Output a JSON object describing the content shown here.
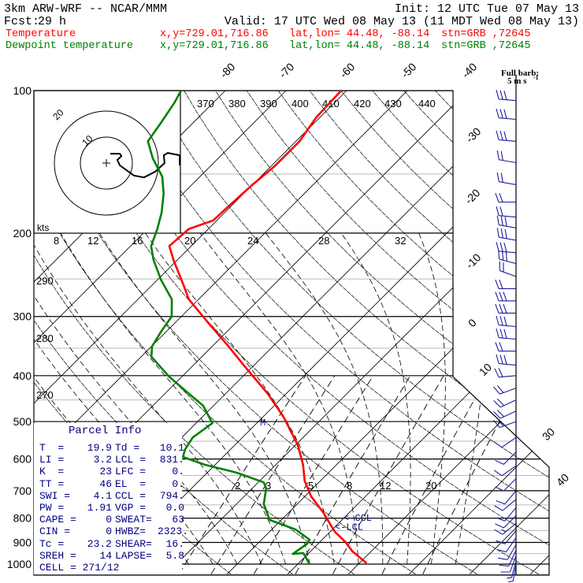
{
  "header": {
    "model": "3km ARW-WRF -- NCAR/MMM",
    "init": "Init: 12 UTC Tue 07 May 13",
    "fcst_label": "Fcst:",
    "fcst_value": "29 h",
    "valid": "Valid: 17 UTC Wed 08 May 13 (11 MDT Wed 08 May 13)"
  },
  "legend": [
    {
      "name": "Temperature",
      "xy": "x,y=729.01,716.86",
      "latlon": "lat,lon= 44.48, -88.14",
      "stn": "stn=GRB ,72645",
      "color": "#ff0000"
    },
    {
      "name": "Dewpoint temperature",
      "xy": "x,y=729.01,716.86",
      "latlon": "lat,lon= 44.48, -88.14",
      "stn": "stn=GRB ,72645",
      "color": "#008000"
    }
  ],
  "barb_legend": {
    "line1": "Full barb:",
    "line2": "5 m s",
    "sup": "-1"
  },
  "parcel_info": {
    "title": "Parcel Info",
    "rows": [
      [
        "T  =",
        "19.9",
        "Td =",
        "10.1"
      ],
      [
        "LI =",
        "3.2",
        "LCL =",
        "831."
      ],
      [
        "K  =",
        "23",
        "LFC =",
        "0."
      ],
      [
        "TT =",
        "46",
        "EL  =",
        "0."
      ],
      [
        "SWI =",
        "4.1",
        "CCL =",
        "794."
      ],
      [
        "PW =",
        "1.91",
        "VGP =",
        "0.0"
      ],
      [
        "CAPE =",
        "0",
        "SWEAT=",
        "63"
      ],
      [
        "CIN =",
        "0",
        "HWBZ=",
        "2323."
      ],
      [
        "Tc =",
        "23.2",
        "SHEAR=",
        "16."
      ],
      [
        "SREH =",
        "14",
        "LAPSE=",
        "5.8"
      ],
      [
        "CELL = 271/12",
        "",
        "",
        ""
      ]
    ]
  },
  "chart_data": {
    "type": "skew-t",
    "pressure_ticks": [
      "100",
      "200",
      "300",
      "400",
      "500",
      "600",
      "700",
      "800",
      "900",
      "1000"
    ],
    "isotherm_labels_top": [
      "-80",
      "-70",
      "-60",
      "-50",
      "-40"
    ],
    "isotherm_labels_right": [
      "-30",
      "-20",
      "-10",
      "0",
      "10",
      "30",
      "40"
    ],
    "dry_adiabat_labels": [
      "370",
      "380",
      "390",
      "400",
      "410",
      "420",
      "430",
      "440",
      "290",
      "280",
      "270"
    ],
    "moist_adiabat_labels": [
      "8",
      "12",
      "16",
      "20",
      "24",
      "28",
      "32"
    ],
    "mixing_ratio_labels": [
      "2",
      "3",
      "5",
      "8",
      "12",
      "20"
    ],
    "hodograph": {
      "units_label": "kts",
      "ring_labels": [
        "10",
        "20"
      ],
      "points_uv_kts": [
        [
          1.5,
          3.6
        ],
        [
          5.2,
          3.6
        ],
        [
          5.8,
          2.7
        ],
        [
          4.2,
          1.2
        ],
        [
          5.2,
          -0.9
        ],
        [
          10.6,
          -4.8
        ],
        [
          14.5,
          -5.5
        ],
        [
          18.8,
          -3.3
        ],
        [
          22.4,
          0
        ],
        [
          22.1,
          3.0
        ],
        [
          23.6,
          3.9
        ],
        [
          28.2,
          3.0
        ],
        [
          28.2,
          -0.9
        ]
      ]
    },
    "temperature": {
      "name": "Temperature",
      "color": "#ff0000",
      "p": [
        100,
        114,
        128,
        144,
        158,
        176,
        188,
        196,
        213,
        228,
        261,
        276,
        310,
        347,
        382,
        437,
        490,
        561,
        617,
        667,
        719,
        777,
        855,
        898,
        940,
        996
      ],
      "t": [
        -60.9,
        -60.6,
        -59.4,
        -59.4,
        -60.0,
        -60.4,
        -60.6,
        -63.2,
        -63.6,
        -60.6,
        -54.2,
        -51.6,
        -44.4,
        -37.3,
        -31.4,
        -23.0,
        -16.5,
        -9.6,
        -5.5,
        -2.6,
        1.0,
        5.6,
        10.8,
        14.2,
        16.9,
        21.2
      ]
    },
    "dewpoint": {
      "name": "Dewpoint temperature",
      "color": "#008000",
      "p": [
        100,
        106,
        117,
        128,
        139,
        152,
        165,
        181,
        196,
        213,
        228,
        251,
        276,
        300,
        322,
        347,
        365,
        402,
        437,
        463,
        504,
        540,
        572,
        594,
        617,
        641,
        672,
        692,
        747,
        807,
        845,
        888,
        906,
        952,
        948,
        996
      ],
      "t": [
        -87.3,
        -86.4,
        -85.3,
        -84.4,
        -80.8,
        -76.2,
        -73.2,
        -70.4,
        -68.4,
        -66.6,
        -63.9,
        -59.4,
        -54.4,
        -51.6,
        -50.9,
        -49.9,
        -48.3,
        -42.1,
        -36.0,
        -31.7,
        -27.3,
        -28.2,
        -27.5,
        -26.6,
        -21.7,
        -15.2,
        -9.1,
        -7.7,
        -5.5,
        -1.9,
        3.9,
        7.9,
        8.2,
        7.5,
        9.1,
        11.7
      ]
    },
    "markers": [
      {
        "label": "<-CCL",
        "p": 794
      },
      {
        "label": "<-LCL",
        "p": 831
      },
      {
        "label": "M",
        "p": 500
      }
    ],
    "winds": {
      "units": "m/s",
      "levels": [
        [
          105,
          275,
          15
        ],
        [
          115,
          275,
          15
        ],
        [
          128,
          275,
          15
        ],
        [
          142,
          280,
          12
        ],
        [
          158,
          280,
          12
        ],
        [
          172,
          270,
          10
        ],
        [
          185,
          275,
          12
        ],
        [
          195,
          280,
          15
        ],
        [
          207,
          280,
          15
        ],
        [
          220,
          275,
          15
        ],
        [
          232,
          285,
          15
        ],
        [
          247,
          290,
          12
        ],
        [
          262,
          270,
          10
        ],
        [
          278,
          270,
          15
        ],
        [
          295,
          270,
          15
        ],
        [
          315,
          275,
          15
        ],
        [
          335,
          275,
          15
        ],
        [
          355,
          270,
          12
        ],
        [
          380,
          275,
          15
        ],
        [
          400,
          265,
          12
        ],
        [
          425,
          250,
          10
        ],
        [
          450,
          245,
          10
        ],
        [
          475,
          245,
          10
        ],
        [
          500,
          250,
          8
        ],
        [
          540,
          235,
          5
        ],
        [
          580,
          225,
          5
        ],
        [
          620,
          235,
          5
        ],
        [
          660,
          225,
          5
        ],
        [
          700,
          220,
          5
        ],
        [
          730,
          230,
          5
        ],
        [
          760,
          220,
          6
        ],
        [
          790,
          225,
          6
        ],
        [
          820,
          230,
          8
        ],
        [
          850,
          220,
          6
        ],
        [
          880,
          215,
          5
        ],
        [
          910,
          210,
          5
        ],
        [
          935,
          205,
          5
        ],
        [
          960,
          200,
          5
        ],
        [
          985,
          195,
          4
        ],
        [
          1000,
          190,
          3
        ]
      ]
    }
  }
}
